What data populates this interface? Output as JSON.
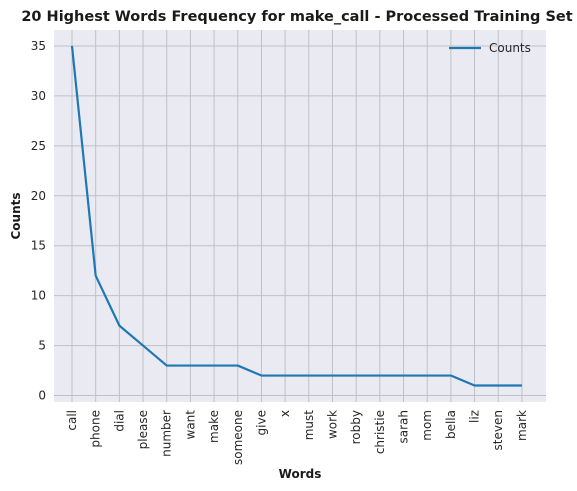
{
  "chart_data": {
    "type": "line",
    "title": "20 Highest Words Frequency for make_call - Processed Training Set",
    "xlabel": "Words",
    "ylabel": "Counts",
    "categories": [
      "call",
      "phone",
      "dial",
      "please",
      "number",
      "want",
      "make",
      "someone",
      "give",
      "x",
      "must",
      "work",
      "robby",
      "christie",
      "sarah",
      "mom",
      "bella",
      "liz",
      "steven",
      "mark"
    ],
    "series": [
      {
        "name": "Counts",
        "values": [
          35,
          12,
          7,
          5,
          3,
          3,
          3,
          3,
          2,
          2,
          2,
          2,
          2,
          2,
          2,
          2,
          2,
          1,
          1,
          1
        ]
      }
    ],
    "y_ticks": [
      0,
      5,
      10,
      15,
      20,
      25,
      30,
      35
    ],
    "grid": true,
    "legend": "top-right",
    "colors": {
      "line": "#1f77b4",
      "background": "#eaeaf2",
      "grid": "#c0c0c8"
    }
  }
}
